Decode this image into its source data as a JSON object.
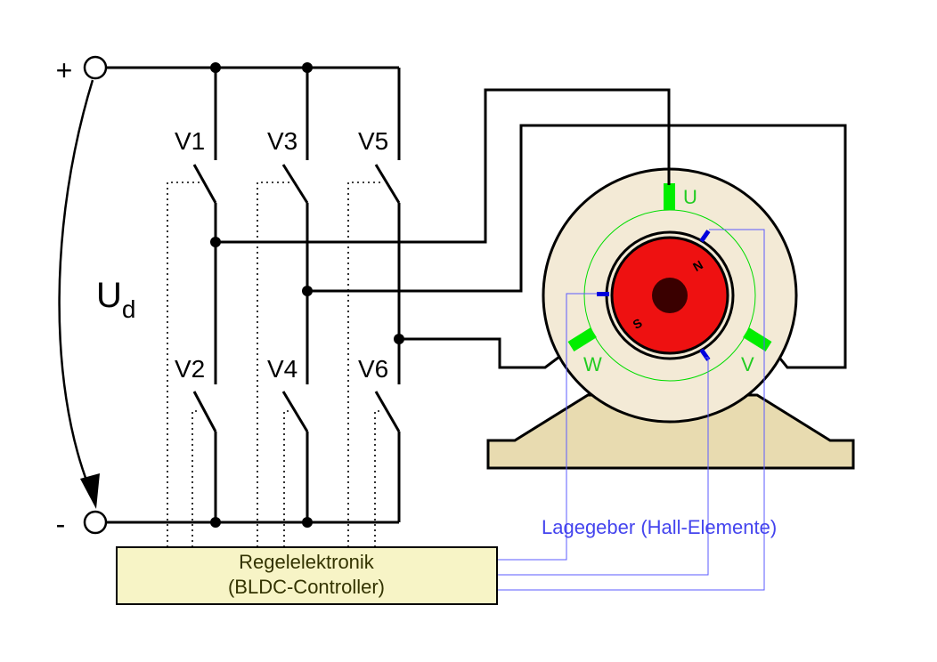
{
  "supply": {
    "plus": "+",
    "minus": "-",
    "voltage_main": "U",
    "voltage_sub": "d"
  },
  "switches": [
    "V1",
    "V3",
    "V5",
    "V2",
    "V4",
    "V6"
  ],
  "motor": {
    "phases": [
      "U",
      "V",
      "W"
    ],
    "rotor_poles": [
      "N",
      "S"
    ]
  },
  "controller": {
    "line1": "Regelelektronik",
    "line2": "(BLDC-Controller)"
  },
  "hall_sensor_label": "Lagegeber (Hall-Elemente)",
  "colors": {
    "coil": "#00ee00",
    "hall_sensor": "#0000dd",
    "hall_wire": "#5b5bff",
    "stator": "#f3ead6",
    "rotor": "#ee1111",
    "base": "#e8dbb0",
    "controller_fill": "#f7f4c6",
    "label_green": "#22cc22",
    "label_blue": "#4444ee",
    "controller_text": "#333300"
  }
}
